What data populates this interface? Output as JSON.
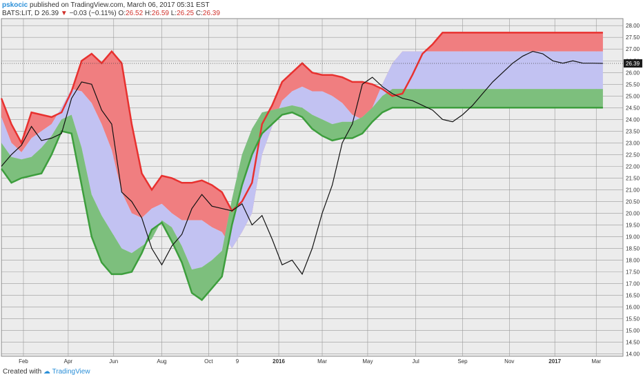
{
  "header": {
    "author": "pskocic",
    "published_text": "published on TradingView.com, March 06, 2017 05:31 EST",
    "symbol": "BATS:LIT, D",
    "last": "26.39",
    "change_arrow": "▼",
    "change": "−0.03 (−0.11%)",
    "open_label": "O:",
    "open": "26.52",
    "high_label": "H:",
    "high": "26.59",
    "low_label": "L:",
    "low": "26.25",
    "close_label": "C:",
    "close": "26.39"
  },
  "footer": {
    "created_with": "Created with",
    "brand": "TradingView"
  },
  "colors": {
    "upper_band": "#f07e80",
    "upper_line": "#e8312f",
    "middle_band": "#c2c2f2",
    "lower_band": "#7dbf7d",
    "lower_line": "#3d9e3d",
    "price_line": "#111111",
    "price_tag": "#1c1c1c",
    "grid": "#9a9a9a",
    "background": "#ececec"
  },
  "chart_data": {
    "type": "line",
    "title": "BATS:LIT, D",
    "xlabel": "",
    "ylabel": "",
    "ylim": [
      13.9,
      28.3
    ],
    "grid": true,
    "x_ticks": [
      "Feb",
      "Apr",
      "Jun",
      "Aug",
      "Oct",
      "9",
      "2016",
      "Mar",
      "May",
      "Jul",
      "Sep",
      "Nov",
      "2017",
      "Mar"
    ],
    "y_ticks": [
      "14.00",
      "14.50",
      "15.00",
      "15.50",
      "16.00",
      "16.50",
      "17.00",
      "17.50",
      "18.00",
      "18.50",
      "19.00",
      "19.50",
      "20.00",
      "20.50",
      "21.00",
      "21.50",
      "22.00",
      "22.50",
      "23.00",
      "23.50",
      "24.00",
      "24.50",
      "25.00",
      "25.50",
      "26.00",
      "26.50",
      "27.00",
      "27.50",
      "28.00"
    ],
    "last_price_label": "26.39",
    "last_price": 26.39,
    "x": [
      0,
      15,
      30,
      45,
      60,
      75,
      90,
      105,
      120,
      135,
      150,
      165,
      180,
      195,
      210,
      225,
      240,
      255,
      270,
      285,
      300,
      315,
      330,
      345,
      360,
      375,
      390,
      405,
      420,
      435,
      450,
      465,
      480,
      495,
      510,
      525,
      540,
      555,
      570,
      585,
      600,
      615,
      630,
      645,
      660,
      675,
      690,
      705,
      720,
      735,
      750,
      765,
      780,
      795,
      810,
      825,
      840,
      855,
      870,
      885,
      900
    ],
    "series": [
      {
        "name": "",
        "values": [
          24.9,
          23.8,
          23.0,
          24.3,
          24.2,
          24.1,
          24.3,
          25.2,
          26.5,
          26.8,
          26.4,
          26.9,
          26.4,
          23.8,
          21.7,
          21.0,
          21.6,
          21.5,
          21.3,
          21.3,
          21.4,
          21.2,
          20.9,
          20.1,
          20.5,
          21.3,
          23.8,
          24.6,
          25.6,
          26.0,
          26.4,
          26.0,
          25.9,
          25.9,
          25.8,
          25.6,
          25.6,
          25.5,
          25.3,
          25.0,
          25.1,
          25.9,
          26.8,
          27.2,
          27.7,
          27.7,
          27.7,
          27.7,
          27.7,
          27.7,
          27.7,
          27.7,
          27.7,
          27.7,
          27.7,
          27.7,
          27.7,
          27.7,
          27.7,
          27.7,
          27.7
        ]
      },
      {
        "name": "",
        "values": [
          24.1,
          23.0,
          22.6,
          23.2,
          23.5,
          23.8,
          24.5,
          25.3,
          25.2,
          24.7,
          23.8,
          22.7,
          20.9,
          20.0,
          19.8,
          20.2,
          20.4,
          20.0,
          19.7,
          19.7,
          19.7,
          19.4,
          19.2,
          18.5,
          19.2,
          20.0,
          22.5,
          23.7,
          24.8,
          25.2,
          25.4,
          25.2,
          25.2,
          25.0,
          24.7,
          24.2,
          24.0,
          24.5,
          25.5,
          26.4,
          26.9,
          26.9,
          26.9,
          26.9,
          26.9,
          26.9,
          26.9,
          26.9,
          26.9,
          26.9,
          26.9,
          26.9,
          26.9,
          26.9,
          26.9,
          26.9,
          26.9,
          26.9,
          26.9,
          26.9,
          26.9
        ]
      },
      {
        "name": "",
        "values": [
          23.0,
          22.4,
          22.3,
          22.4,
          22.8,
          23.3,
          24.0,
          24.2,
          22.8,
          20.8,
          19.9,
          19.2,
          18.5,
          18.3,
          18.6,
          18.9,
          19.7,
          19.4,
          18.6,
          17.6,
          17.7,
          18.0,
          18.4,
          20.6,
          22.5,
          23.6,
          24.3,
          24.4,
          24.5,
          24.6,
          24.5,
          24.2,
          24.0,
          23.8,
          23.9,
          23.9,
          24.1,
          24.5,
          25.0,
          25.3,
          25.3,
          25.3,
          25.3,
          25.3,
          25.3,
          25.3,
          25.3,
          25.3,
          25.3,
          25.3,
          25.3,
          25.3,
          25.3,
          25.3,
          25.3,
          25.3,
          25.3,
          25.3,
          25.3,
          25.3,
          25.3
        ]
      },
      {
        "name": "",
        "values": [
          21.9,
          21.3,
          21.5,
          21.6,
          21.7,
          22.5,
          23.5,
          23.4,
          21.2,
          19.0,
          17.9,
          17.4,
          17.4,
          17.5,
          18.3,
          19.3,
          19.6,
          18.8,
          17.9,
          16.6,
          16.3,
          16.8,
          17.3,
          19.5,
          21.2,
          22.5,
          23.4,
          23.8,
          24.2,
          24.3,
          24.1,
          23.6,
          23.3,
          23.1,
          23.2,
          23.2,
          23.4,
          23.9,
          24.3,
          24.5,
          24.5,
          24.5,
          24.5,
          24.5,
          24.5,
          24.5,
          24.5,
          24.5,
          24.5,
          24.5,
          24.5,
          24.5,
          24.5,
          24.5,
          24.5,
          24.5,
          24.5,
          24.5,
          24.5,
          24.5,
          24.5
        ]
      },
      {
        "name": "",
        "values": [
          22.0,
          22.5,
          22.9,
          23.7,
          23.1,
          23.2,
          23.4,
          24.9,
          25.6,
          25.5,
          24.4,
          23.8,
          20.9,
          20.5,
          19.8,
          18.5,
          17.8,
          18.6,
          19.1,
          20.2,
          20.8,
          20.3,
          20.2,
          20.1,
          20.4,
          19.5,
          19.9,
          18.9,
          17.8,
          18.0,
          17.4,
          18.5,
          20.0,
          21.2,
          23.0,
          23.8,
          25.5,
          25.8,
          25.4,
          25.1,
          24.9,
          24.8,
          24.6,
          24.4,
          24.0,
          23.9,
          24.2,
          24.6,
          25.1,
          25.6,
          26.0,
          26.4,
          26.7,
          26.9,
          26.8,
          26.5,
          26.4,
          26.5,
          26.4,
          26.4,
          26.39
        ]
      }
    ]
  }
}
